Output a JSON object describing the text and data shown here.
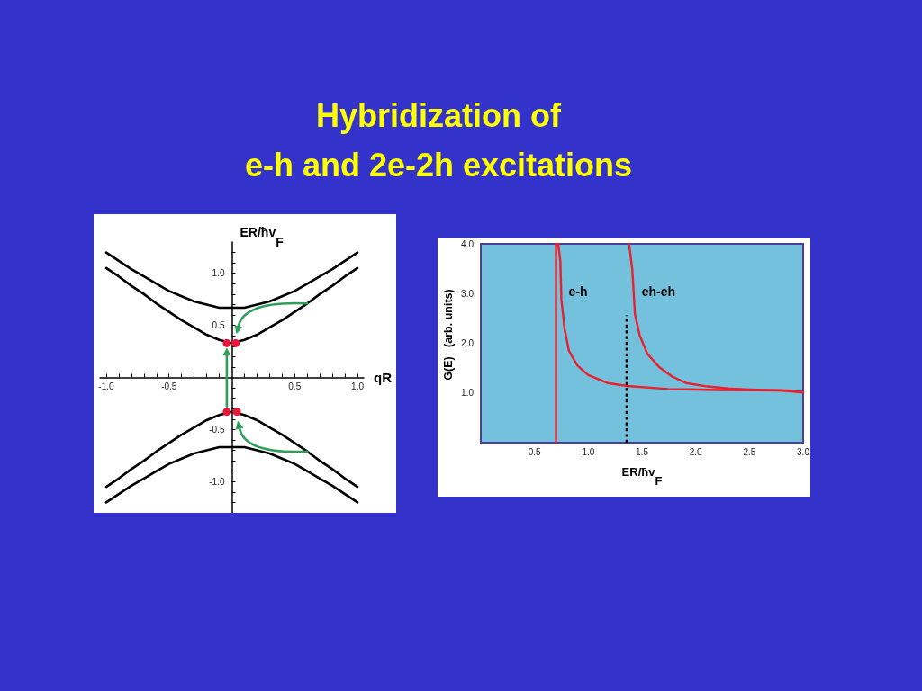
{
  "chart_data": [
    {
      "type": "line",
      "title": "Hybridization of\ne-h and 2e-2h excitations",
      "xlabel": "qR",
      "ylabel": "ER/ħv$_{F}$",
      "marker": "none",
      "x": [
        -1,
        -0.9,
        -0.8,
        -0.7,
        -0.6,
        -0.5,
        -0.4,
        -0.3,
        -0.2,
        -0.1,
        0,
        0.1,
        0.2,
        0.3,
        0.4,
        0.5,
        0.6,
        0.7,
        0.8,
        0.9,
        1
      ],
      "series": [
        {
          "color": "#000000",
          "values": [
            1.2,
            1.12,
            1.04,
            0.97,
            0.9,
            0.83,
            0.78,
            0.73,
            0.7,
            0.67,
            0.67,
            0.67,
            0.7,
            0.73,
            0.78,
            0.83,
            0.9,
            0.97,
            1.04,
            1.12,
            1.2
          ]
        },
        {
          "color": "#000000",
          "values": [
            1.05,
            0.97,
            0.88,
            0.8,
            0.71,
            0.63,
            0.55,
            0.48,
            0.41,
            0.36,
            0.33,
            0.36,
            0.41,
            0.48,
            0.55,
            0.63,
            0.71,
            0.8,
            0.88,
            0.97,
            1.05
          ]
        },
        {
          "color": "#000000",
          "values": [
            -1.05,
            -0.97,
            -0.88,
            -0.8,
            -0.71,
            -0.63,
            -0.55,
            -0.48,
            -0.41,
            -0.36,
            -0.33,
            -0.36,
            -0.41,
            -0.48,
            -0.55,
            -0.63,
            -0.71,
            -0.8,
            -0.88,
            -0.97,
            -1.05
          ]
        },
        {
          "color": "#000000",
          "values": [
            -1.2,
            -1.12,
            -1.04,
            -0.97,
            -0.9,
            -0.83,
            -0.78,
            -0.73,
            -0.7,
            -0.67,
            -0.67,
            -0.67,
            -0.7,
            -0.73,
            -0.78,
            -0.83,
            -0.9,
            -0.97,
            -1.04,
            -1.12,
            -1.2
          ]
        },
        {
          "type": "scatter",
          "marker": "circle",
          "color": "#e8173c",
          "x": [
            -0.04,
            0.03
          ],
          "values": [
            0.33,
            0.33
          ]
        },
        {
          "type": "scatter",
          "marker": "circle",
          "color": "#e8173c",
          "x": [
            -0.04,
            0.04
          ],
          "values": [
            -0.33,
            -0.33
          ]
        }
      ],
      "xlim": [
        -1.05,
        1.05
      ],
      "ylim": [
        -1.3,
        1.3
      ],
      "xticks": [
        {
          "value": -1,
          "label": "-1.0"
        },
        {
          "value": -0.9,
          "label": null
        },
        {
          "value": -0.8,
          "label": null
        },
        {
          "value": -0.7,
          "label": null
        },
        {
          "value": -0.6,
          "label": null
        },
        -0.5,
        {
          "value": -0.4,
          "label": null
        },
        {
          "value": -0.3,
          "label": null
        },
        {
          "value": -0.2,
          "label": null
        },
        {
          "value": -0.1,
          "label": null
        },
        {
          "value": 0.1,
          "label": null
        },
        {
          "value": 0.2,
          "label": null
        },
        {
          "value": 0.3,
          "label": null
        },
        {
          "value": 0.4,
          "label": null
        },
        0.5,
        {
          "value": 0.6,
          "label": null
        },
        {
          "value": 0.7,
          "label": null
        },
        {
          "value": 0.8,
          "label": null
        },
        {
          "value": 0.9,
          "label": null
        },
        {
          "value": 1,
          "label": "1.0"
        }
      ],
      "yticks": [
        {
          "value": -1.2,
          "label": null
        },
        {
          "value": -1.1,
          "label": null
        },
        {
          "value": -1,
          "label": "-1.0"
        },
        {
          "value": -0.9,
          "label": null
        },
        {
          "value": -0.8,
          "label": null
        },
        {
          "value": -0.7,
          "label": null
        },
        {
          "value": -0.6,
          "label": null
        },
        -0.5,
        {
          "value": -0.4,
          "label": null
        },
        {
          "value": -0.3,
          "label": null
        },
        {
          "value": -0.2,
          "label": null
        },
        {
          "value": -0.1,
          "label": null
        },
        {
          "value": 0.1,
          "label": null
        },
        {
          "value": 0.2,
          "label": null
        },
        {
          "value": 0.3,
          "label": null
        },
        {
          "value": 0.4,
          "label": null
        },
        0.5,
        {
          "value": 0.6,
          "label": null
        },
        {
          "value": 0.7,
          "label": null
        },
        {
          "value": 0.8,
          "label": null
        },
        {
          "value": 0.9,
          "label": null
        },
        {
          "value": 1,
          "label": "1.0"
        },
        {
          "value": 1.1,
          "label": null
        },
        {
          "value": 1.2,
          "label": null
        }
      ]
    },
    {
      "type": "line",
      "xlabel": "ER/ħv$_{F}$",
      "ylabel": "G(E)   (arb. units)",
      "marker": "none",
      "series": [
        {
          "name": "e-h",
          "color": "#e8212e",
          "x": [
            0.7,
            0.7,
            0.72,
            0.74,
            0.75,
            0.78,
            0.82,
            0.9,
            1.0,
            1.18,
            1.36,
            1.74,
            2.2,
            2.85,
            3.0
          ],
          "values": [
            0,
            4.0,
            4.0,
            3.66,
            2.88,
            2.28,
            1.85,
            1.55,
            1.36,
            1.2,
            1.14,
            1.08,
            1.06,
            1.05,
            1.02
          ]
        },
        {
          "name": "eh-eh",
          "color": "#e8212e",
          "x": [
            1.38,
            1.41,
            1.435,
            1.48,
            1.55,
            1.66,
            1.78,
            1.91,
            2.11,
            2.3,
            2.5,
            2.8,
            3.0
          ],
          "values": [
            4.0,
            3.48,
            2.58,
            2.15,
            1.79,
            1.52,
            1.33,
            1.2,
            1.13,
            1.09,
            1.07,
            1.05,
            1.01
          ]
        },
        {
          "color": "#000000",
          "line_style": "dotted",
          "x": [
            1.36,
            1.36
          ],
          "values": [
            0,
            2.56
          ]
        }
      ],
      "xlim": [
        0,
        3.0
      ],
      "ylim": [
        0,
        4.0
      ],
      "xticks": [
        0.5,
        {
          "value": 1,
          "label": "1.0"
        },
        1.5,
        {
          "value": 2,
          "label": "2.0"
        },
        2.5,
        {
          "value": 3,
          "label": "3.0"
        }
      ],
      "yticks": [
        {
          "value": 1,
          "label": "1.0"
        },
        {
          "value": 2,
          "label": "2.0"
        },
        {
          "value": 3,
          "label": "3.0"
        },
        {
          "value": 4,
          "label": "4.0"
        }
      ]
    }
  ]
}
